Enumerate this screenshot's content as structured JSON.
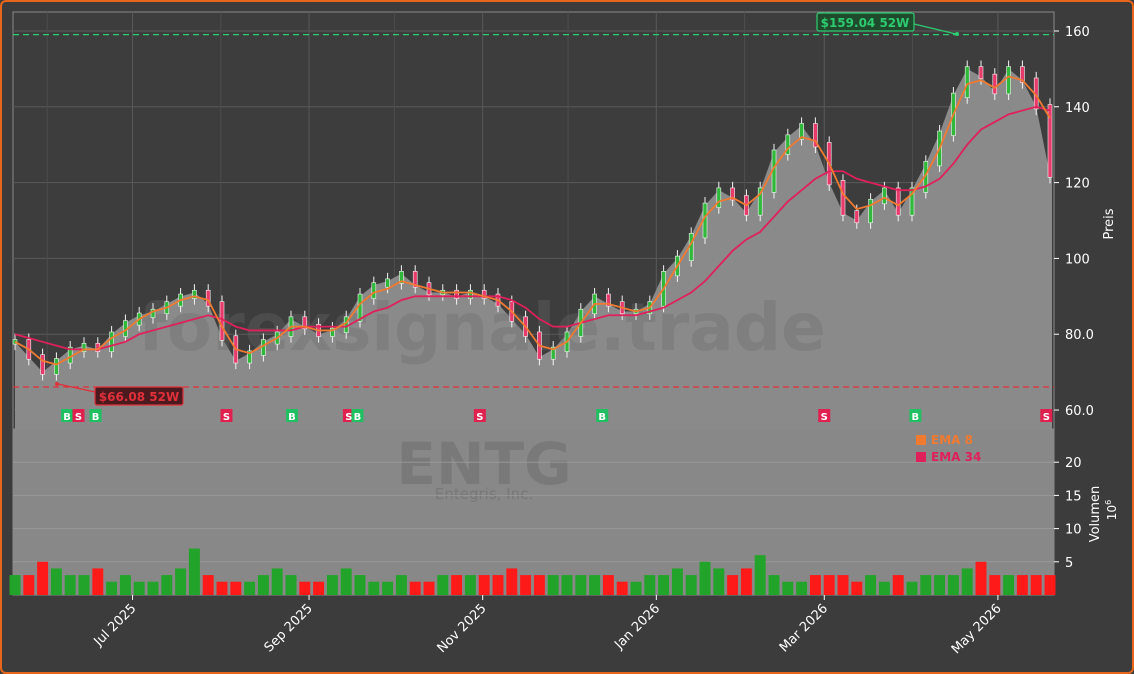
{
  "watermark": {
    "site": "forexsignale.trade",
    "ticker": "ENTG",
    "company": "Entegris, Inc."
  },
  "annotations": {
    "high_label": "$159.04 52W",
    "low_label": "$66.08 52W",
    "high_value": 159.04,
    "low_value": 66.08
  },
  "legend": {
    "ema8_label": "EMA 8",
    "ema34_label": "EMA 34"
  },
  "axes": {
    "price_label": "Preis",
    "volume_label": "Volumen",
    "volume_unit": "10",
    "volume_unit_exp": "6",
    "price_ticks": [
      "60.0",
      "80.0",
      "100",
      "120",
      "140",
      "160"
    ],
    "volume_ticks": [
      "5",
      "10",
      "15",
      "20"
    ],
    "date_ticks": [
      "Jul 2025",
      "Sep 2025",
      "Nov 2025",
      "Jan 2026",
      "Mar 2026",
      "May 2026"
    ]
  },
  "colors": {
    "up": "#22a42a",
    "down": "#ff1a1a",
    "ema8": "#f07a30",
    "ema34": "#e0205a",
    "high": "#2ecc71",
    "low": "#e0303a",
    "buy": "#1fbf62",
    "sell": "#e0204f"
  },
  "chart_data": {
    "type": "candlestick",
    "ticker": "ENTG",
    "price_ylim": [
      55,
      165
    ],
    "volume_ylim": [
      0,
      25
    ],
    "volume_unit": "millions",
    "x_range": [
      "2025-05-20",
      "2026-05-20"
    ],
    "close": [
      78,
      74,
      70,
      73,
      76,
      77,
      76,
      80,
      83,
      85,
      86,
      88,
      90,
      91,
      88,
      79,
      73,
      75,
      78,
      80,
      84,
      82,
      80,
      81,
      84,
      90,
      93,
      94,
      96,
      93,
      91,
      91,
      90,
      91,
      90,
      88,
      84,
      80,
      74,
      76,
      80,
      86,
      90,
      88,
      86,
      86,
      88,
      96,
      100,
      106,
      114,
      118,
      116,
      112,
      118,
      128,
      132,
      135,
      130,
      120,
      112,
      110,
      115,
      118,
      112,
      118,
      125,
      133,
      143,
      150,
      148,
      144,
      150,
      147,
      140,
      122
    ],
    "ema8": [
      78,
      76,
      73,
      72,
      74,
      76,
      76,
      79,
      81,
      84,
      86,
      87,
      89,
      90,
      89,
      82,
      76,
      75,
      77,
      79,
      82,
      82,
      81,
      81,
      83,
      88,
      91,
      92,
      94,
      93,
      92,
      91,
      91,
      91,
      90,
      89,
      86,
      82,
      77,
      76,
      78,
      83,
      88,
      88,
      87,
      86,
      87,
      92,
      98,
      104,
      111,
      115,
      116,
      114,
      117,
      124,
      129,
      132,
      131,
      125,
      117,
      113,
      114,
      116,
      114,
      117,
      122,
      129,
      138,
      146,
      147,
      145,
      148,
      147,
      143,
      137
    ],
    "ema34": [
      80,
      79,
      78,
      77,
      76,
      76,
      76,
      77,
      78,
      80,
      81,
      82,
      83,
      84,
      85,
      84,
      82,
      81,
      81,
      81,
      81,
      82,
      82,
      82,
      82,
      84,
      86,
      87,
      89,
      90,
      90,
      90,
      90,
      90,
      90,
      90,
      89,
      87,
      84,
      82,
      82,
      83,
      84,
      85,
      85,
      85,
      86,
      87,
      89,
      91,
      94,
      98,
      102,
      105,
      107,
      111,
      115,
      118,
      121,
      123,
      123,
      121,
      120,
      119,
      118,
      118,
      119,
      121,
      125,
      130,
      134,
      136,
      138,
      139,
      140,
      139
    ],
    "volume": [
      3,
      3,
      5,
      4,
      3,
      3,
      4,
      2,
      3,
      2,
      2,
      3,
      4,
      7,
      3,
      2,
      2,
      2,
      3,
      4,
      3,
      2,
      2,
      3,
      4,
      3,
      2,
      2,
      3,
      2,
      2,
      3,
      3,
      3,
      3,
      3,
      4,
      3,
      3,
      3,
      3,
      3,
      3,
      3,
      2,
      2,
      3,
      3,
      4,
      3,
      5,
      4,
      3,
      4,
      6,
      3,
      2,
      2,
      3,
      3,
      3,
      2,
      3,
      2,
      3,
      2,
      3,
      3,
      3,
      4,
      5,
      3,
      3,
      3,
      3,
      3
    ],
    "signals": [
      {
        "type": "B",
        "date": "2025-06-08"
      },
      {
        "type": "S",
        "date": "2025-06-12"
      },
      {
        "type": "B",
        "date": "2025-06-18"
      },
      {
        "type": "S",
        "date": "2025-08-03"
      },
      {
        "type": "B",
        "date": "2025-08-26"
      },
      {
        "type": "S",
        "date": "2025-09-15"
      },
      {
        "type": "B",
        "date": "2025-09-18"
      },
      {
        "type": "S",
        "date": "2025-10-31"
      },
      {
        "type": "B",
        "date": "2025-12-13"
      },
      {
        "type": "S",
        "date": "2026-03-01"
      },
      {
        "type": "B",
        "date": "2026-04-02"
      },
      {
        "type": "S",
        "date": "2026-05-18"
      }
    ]
  }
}
